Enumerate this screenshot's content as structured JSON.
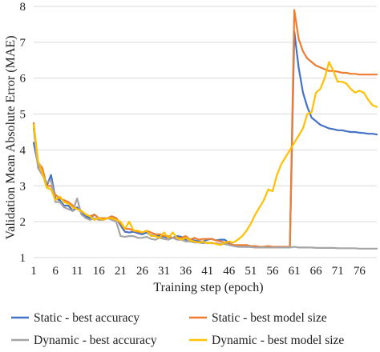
{
  "chart_data": {
    "type": "line",
    "xlabel": "Training step (epoch)",
    "ylabel": "Validation Mean Absolute Error (MAE)",
    "xlim": [
      1,
      80
    ],
    "ylim": [
      1,
      8
    ],
    "yticks": [
      1,
      2,
      3,
      4,
      5,
      6,
      7,
      8
    ],
    "xticks": [
      1,
      6,
      11,
      16,
      21,
      26,
      31,
      36,
      41,
      46,
      51,
      56,
      61,
      66,
      71,
      76
    ],
    "grid": "horizontal",
    "legend_position": "bottom",
    "series": [
      {
        "name": "Static - best accuracy",
        "color": "#4472C4",
        "x": [
          1,
          2,
          3,
          4,
          5,
          6,
          7,
          8,
          9,
          10,
          11,
          12,
          13,
          14,
          15,
          16,
          17,
          18,
          19,
          20,
          21,
          22,
          23,
          24,
          25,
          26,
          27,
          28,
          29,
          30,
          31,
          32,
          33,
          34,
          35,
          36,
          37,
          38,
          39,
          40,
          41,
          42,
          43,
          44,
          45,
          46,
          47,
          48,
          49,
          50,
          51,
          52,
          53,
          54,
          55,
          56,
          57,
          58,
          59,
          60,
          61,
          62,
          63,
          64,
          65,
          66,
          67,
          68,
          69,
          70,
          71,
          72,
          73,
          74,
          75,
          76,
          77,
          78,
          79,
          80
        ],
        "values": [
          4.2,
          3.6,
          3.4,
          3.0,
          3.3,
          2.65,
          2.6,
          2.45,
          2.45,
          2.3,
          2.4,
          2.25,
          2.15,
          2.1,
          2.2,
          2.1,
          2.05,
          2.1,
          2.15,
          2.1,
          1.9,
          1.72,
          1.7,
          1.72,
          1.68,
          1.65,
          1.7,
          1.62,
          1.6,
          1.6,
          1.58,
          1.55,
          1.55,
          1.6,
          1.58,
          1.5,
          1.5,
          1.48,
          1.45,
          1.45,
          1.5,
          1.52,
          1.48,
          1.5,
          1.5,
          1.4,
          1.35,
          1.32,
          1.3,
          1.3,
          1.3,
          1.28,
          1.28,
          1.28,
          1.28,
          1.28,
          1.28,
          1.28,
          1.28,
          1.3,
          7.3,
          6.3,
          5.6,
          5.2,
          4.9,
          4.8,
          4.7,
          4.65,
          4.6,
          4.58,
          4.55,
          4.55,
          4.52,
          4.5,
          4.5,
          4.48,
          4.47,
          4.45,
          4.45,
          4.43
        ]
      },
      {
        "name": "Static - best model size",
        "color": "#ED7D31",
        "x": [
          1,
          2,
          3,
          4,
          5,
          6,
          7,
          8,
          9,
          10,
          11,
          12,
          13,
          14,
          15,
          16,
          17,
          18,
          19,
          20,
          21,
          22,
          23,
          24,
          25,
          26,
          27,
          28,
          29,
          30,
          31,
          32,
          33,
          34,
          35,
          36,
          37,
          38,
          39,
          40,
          41,
          42,
          43,
          44,
          45,
          46,
          47,
          48,
          49,
          50,
          51,
          52,
          53,
          54,
          55,
          56,
          57,
          58,
          59,
          60,
          61,
          62,
          63,
          64,
          65,
          66,
          67,
          68,
          69,
          70,
          71,
          72,
          73,
          74,
          75,
          76,
          77,
          78,
          79,
          80
        ],
        "values": [
          4.75,
          3.65,
          3.5,
          3.0,
          3.0,
          2.75,
          2.65,
          2.6,
          2.55,
          2.45,
          2.35,
          2.3,
          2.2,
          2.15,
          2.2,
          2.1,
          2.1,
          2.1,
          2.15,
          2.1,
          1.95,
          1.8,
          1.8,
          1.75,
          1.72,
          1.7,
          1.75,
          1.7,
          1.65,
          1.65,
          1.6,
          1.6,
          1.55,
          1.55,
          1.55,
          1.6,
          1.5,
          1.55,
          1.5,
          1.52,
          1.52,
          1.52,
          1.48,
          1.45,
          1.42,
          1.38,
          1.35,
          1.35,
          1.35,
          1.35,
          1.32,
          1.32,
          1.3,
          1.3,
          1.32,
          1.3,
          1.3,
          1.3,
          1.3,
          1.3,
          7.9,
          7.1,
          6.75,
          6.55,
          6.45,
          6.35,
          6.3,
          6.25,
          6.2,
          6.2,
          6.18,
          6.15,
          6.15,
          6.12,
          6.12,
          6.1,
          6.1,
          6.1,
          6.1,
          6.1
        ]
      },
      {
        "name": "Dynamic - best accuracy",
        "color": "#A5A5A5",
        "x": [
          1,
          2,
          3,
          4,
          5,
          6,
          7,
          8,
          9,
          10,
          11,
          12,
          13,
          14,
          15,
          16,
          17,
          18,
          19,
          20,
          21,
          22,
          23,
          24,
          25,
          26,
          27,
          28,
          29,
          30,
          31,
          32,
          33,
          34,
          35,
          36,
          37,
          38,
          39,
          40,
          41,
          42,
          43,
          44,
          45,
          46,
          47,
          48,
          49,
          50,
          51,
          52,
          53,
          54,
          55,
          56,
          57,
          58,
          59,
          60,
          61,
          62,
          63,
          64,
          65,
          66,
          67,
          68,
          69,
          70,
          71,
          72,
          73,
          74,
          75,
          76,
          77,
          78,
          79,
          80
        ],
        "values": [
          4.6,
          3.5,
          3.3,
          3.1,
          3.15,
          2.55,
          2.55,
          2.4,
          2.35,
          2.3,
          2.65,
          2.2,
          2.1,
          2.05,
          2.1,
          2.05,
          2.05,
          2.1,
          2.05,
          2.0,
          1.6,
          1.58,
          1.6,
          1.6,
          1.55,
          1.55,
          1.58,
          1.52,
          1.5,
          1.55,
          1.52,
          1.5,
          1.55,
          1.5,
          1.5,
          1.45,
          1.45,
          1.42,
          1.42,
          1.4,
          1.42,
          1.4,
          1.4,
          1.38,
          1.38,
          1.35,
          1.32,
          1.3,
          1.3,
          1.3,
          1.3,
          1.28,
          1.28,
          1.28,
          1.28,
          1.28,
          1.28,
          1.28,
          1.28,
          1.28,
          1.3,
          1.28,
          1.28,
          1.28,
          1.28,
          1.27,
          1.27,
          1.27,
          1.27,
          1.27,
          1.26,
          1.26,
          1.26,
          1.26,
          1.26,
          1.25,
          1.25,
          1.25,
          1.25,
          1.25
        ]
      },
      {
        "name": "Dynamic - best model size",
        "color": "#FFC000",
        "x": [
          1,
          2,
          3,
          4,
          5,
          6,
          7,
          8,
          9,
          10,
          11,
          12,
          13,
          14,
          15,
          16,
          17,
          18,
          19,
          20,
          21,
          22,
          23,
          24,
          25,
          26,
          27,
          28,
          29,
          30,
          31,
          32,
          33,
          34,
          35,
          36,
          37,
          38,
          39,
          40,
          41,
          42,
          43,
          44,
          45,
          46,
          47,
          48,
          49,
          50,
          51,
          52,
          53,
          54,
          55,
          56,
          57,
          58,
          59,
          60,
          61,
          62,
          63,
          64,
          65,
          66,
          67,
          68,
          69,
          70,
          71,
          72,
          73,
          74,
          75,
          76,
          77,
          78,
          79,
          80
        ],
        "values": [
          4.7,
          3.7,
          3.35,
          2.95,
          2.9,
          2.6,
          2.7,
          2.55,
          2.5,
          2.4,
          2.35,
          2.3,
          2.2,
          2.15,
          2.05,
          2.1,
          2.05,
          2.1,
          2.1,
          2.05,
          2.0,
          1.8,
          2.0,
          1.75,
          1.75,
          1.7,
          1.75,
          1.6,
          1.6,
          1.55,
          1.7,
          1.55,
          1.7,
          1.55,
          1.5,
          1.55,
          1.48,
          1.45,
          1.42,
          1.45,
          1.4,
          1.42,
          1.38,
          1.35,
          1.42,
          1.45,
          1.42,
          1.5,
          1.6,
          1.75,
          1.95,
          2.2,
          2.4,
          2.6,
          2.9,
          2.85,
          3.3,
          3.6,
          3.8,
          4.0,
          4.2,
          4.4,
          4.6,
          5.0,
          5.05,
          5.6,
          5.7,
          6.0,
          6.45,
          6.2,
          5.9,
          5.9,
          5.85,
          5.7,
          5.6,
          5.65,
          5.6,
          5.4,
          5.25,
          5.2
        ]
      }
    ]
  }
}
